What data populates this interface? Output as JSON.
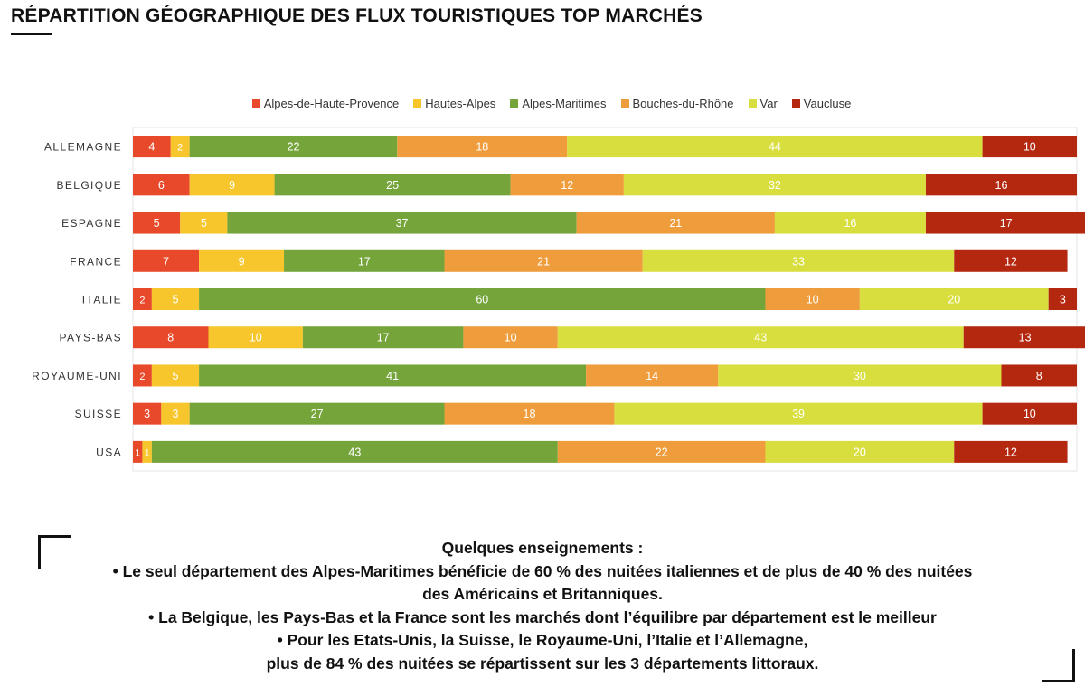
{
  "page": {
    "title": "RÉPARTITION GÉOGRAPHIQUE DES FLUX TOURISTIQUES TOP MARCHÉS"
  },
  "colors": {
    "Alpes-de-Haute-Provence": "#e8492a",
    "Hautes-Alpes": "#f7c62c",
    "Alpes-Maritimes": "#75a53a",
    "Bouches-du-Rhône": "#ef9d3c",
    "Var": "#d9de3f",
    "Vaucluse": "#b42810"
  },
  "chart_data": {
    "type": "bar",
    "orientation": "horizontal",
    "stacked": true,
    "legend_position": "top-center",
    "grid": false,
    "data_labels": true,
    "categories": [
      "ALLEMAGNE",
      "BELGIQUE",
      "ESPAGNE",
      "FRANCE",
      "ITALIE",
      "PAYS-BAS",
      "ROYAUME-UNI",
      "SUISSE",
      "USA"
    ],
    "series": [
      {
        "name": "Alpes-de-Haute-Provence",
        "values": [
          4,
          6,
          5,
          7,
          2,
          8,
          2,
          3,
          1
        ]
      },
      {
        "name": "Hautes-Alpes",
        "values": [
          2,
          9,
          5,
          9,
          5,
          10,
          5,
          3,
          1
        ]
      },
      {
        "name": "Alpes-Maritimes",
        "values": [
          22,
          25,
          37,
          17,
          60,
          17,
          41,
          27,
          43
        ]
      },
      {
        "name": "Bouches-du-Rhône",
        "values": [
          18,
          12,
          21,
          21,
          10,
          10,
          14,
          18,
          22
        ]
      },
      {
        "name": "Var",
        "values": [
          44,
          32,
          16,
          33,
          20,
          43,
          30,
          39,
          20
        ]
      },
      {
        "name": "Vaucluse",
        "values": [
          10,
          16,
          17,
          12,
          3,
          13,
          8,
          10,
          12
        ]
      }
    ],
    "xlim": [
      0,
      100
    ]
  },
  "notes": {
    "heading": "Quelques enseignements :",
    "line1": "• Le seul département des Alpes-Maritimes bénéficie de 60 % des nuitées italiennes et de plus de 40 % des nuitées",
    "line2": "des Américains et Britanniques.",
    "line3": "• La Belgique, les Pays-Bas et la France sont les marchés dont l’équilibre par département est le meilleur",
    "line4": "• Pour les Etats-Unis, la Suisse, le Royaume-Uni, l’Italie et l’Allemagne,",
    "line5": "plus de 84 % des nuitées se répartissent sur les 3 départements littoraux."
  }
}
